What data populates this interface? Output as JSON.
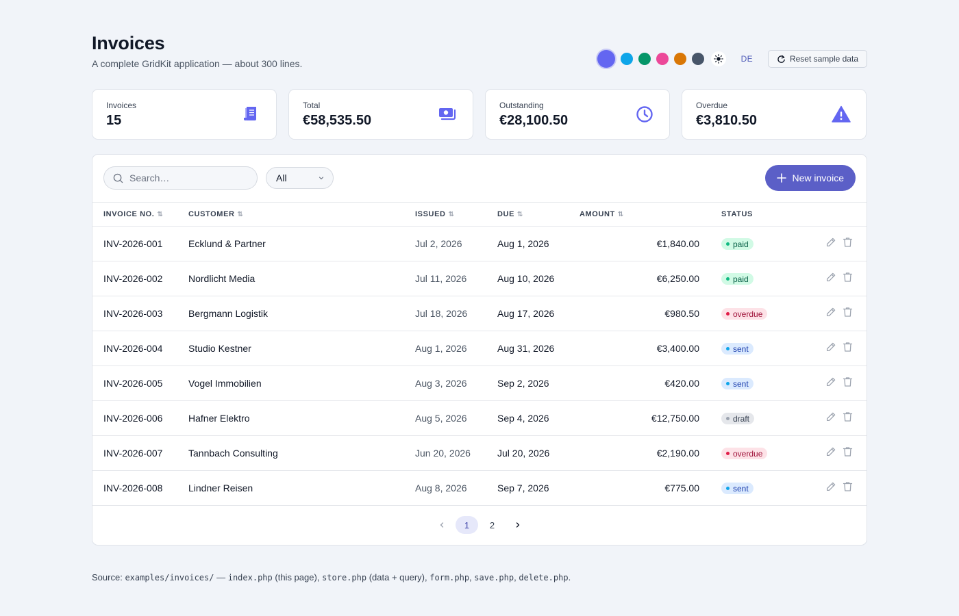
{
  "header": {
    "title": "Invoices",
    "subtitle": "A complete GridKit application — about 300 lines.",
    "swatches": [
      "#6366f1",
      "#0ea5e9",
      "#059669",
      "#ec4899",
      "#d97706",
      "#475569"
    ],
    "theme_icon": "sun-icon",
    "lang_label": "DE",
    "reset_label": "Reset sample data"
  },
  "stats": [
    {
      "label": "Invoices",
      "value": "15",
      "icon": "receipt-icon"
    },
    {
      "label": "Total",
      "value": "€58,535.50",
      "icon": "money-icon"
    },
    {
      "label": "Outstanding",
      "value": "€28,100.50",
      "icon": "clock-icon"
    },
    {
      "label": "Overdue",
      "value": "€3,810.50",
      "icon": "warning-icon"
    }
  ],
  "toolbar": {
    "search_placeholder": "Search…",
    "search_value": "",
    "filter_value": "All",
    "new_label": "New invoice"
  },
  "table": {
    "columns": [
      "Invoice no.",
      "Customer",
      "Issued",
      "Due",
      "Amount",
      "Status"
    ],
    "rows": [
      {
        "no": "INV-2026-001",
        "customer": "Ecklund & Partner",
        "issued": "Jul 2, 2026",
        "due": "Aug 1, 2026",
        "amount": "€1,840.00",
        "status": "paid"
      },
      {
        "no": "INV-2026-002",
        "customer": "Nordlicht Media",
        "issued": "Jul 11, 2026",
        "due": "Aug 10, 2026",
        "amount": "€6,250.00",
        "status": "paid"
      },
      {
        "no": "INV-2026-003",
        "customer": "Bergmann Logistik",
        "issued": "Jul 18, 2026",
        "due": "Aug 17, 2026",
        "amount": "€980.50",
        "status": "overdue"
      },
      {
        "no": "INV-2026-004",
        "customer": "Studio Kestner",
        "issued": "Aug 1, 2026",
        "due": "Aug 31, 2026",
        "amount": "€3,400.00",
        "status": "sent"
      },
      {
        "no": "INV-2026-005",
        "customer": "Vogel Immobilien",
        "issued": "Aug 3, 2026",
        "due": "Sep 2, 2026",
        "amount": "€420.00",
        "status": "sent"
      },
      {
        "no": "INV-2026-006",
        "customer": "Hafner Elektro",
        "issued": "Aug 5, 2026",
        "due": "Sep 4, 2026",
        "amount": "€12,750.00",
        "status": "draft"
      },
      {
        "no": "INV-2026-007",
        "customer": "Tannbach Consulting",
        "issued": "Jun 20, 2026",
        "due": "Jul 20, 2026",
        "amount": "€2,190.00",
        "status": "overdue"
      },
      {
        "no": "INV-2026-008",
        "customer": "Lindner Reisen",
        "issued": "Aug 8, 2026",
        "due": "Sep 7, 2026",
        "amount": "€775.00",
        "status": "sent"
      }
    ]
  },
  "pager": {
    "pages": [
      "1",
      "2"
    ],
    "current": "1"
  },
  "footer": {
    "prefix": "Source:",
    "path": "examples/invoices/",
    "sep": "—",
    "f1": "index.php",
    "f1_note": "(this page),",
    "f2": "store.php",
    "f2_note": "(data + query),",
    "f3": "form.php",
    "f4": "save.php",
    "f5": "delete.php"
  }
}
